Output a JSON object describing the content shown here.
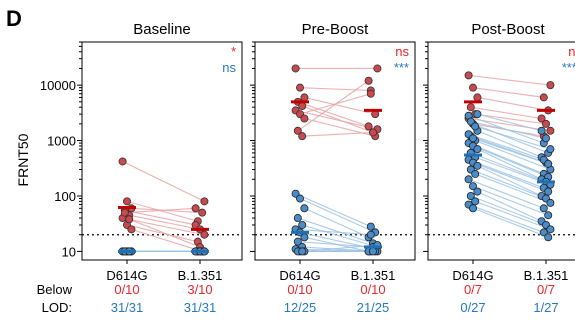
{
  "chart_data": {
    "type": "scatter",
    "figure_label": "D",
    "ylabel": "FRNT50",
    "yscale": "log",
    "ylim": [
      7,
      60000
    ],
    "yticks": [
      10,
      100,
      1000,
      10000
    ],
    "ytick_labels": [
      "10",
      "100",
      "1000",
      "10000"
    ],
    "lod": 20,
    "categories": [
      "D614G",
      "B.1.351"
    ],
    "colors": {
      "red_fill": "#c8494e",
      "red_line": "#e8a3a5",
      "red_median": "#c00000",
      "blue_fill": "#4a8cc7",
      "blue_line": "#9cc3e4",
      "blue_median": "#1f6fb4",
      "label_red": "#e8262b",
      "label_blue": "#2878c0"
    },
    "below_lod_label": [
      "Below",
      "LOD:"
    ],
    "panels": [
      {
        "title": "Baseline",
        "sig_red": "*",
        "sig_blue": "ns",
        "red_medians": [
          62,
          25
        ],
        "blue_medians": [
          10,
          10
        ],
        "red_pairs": [
          [
            420,
            80
          ],
          [
            80,
            35
          ],
          [
            60,
            50
          ],
          [
            55,
            30
          ],
          [
            45,
            25
          ],
          [
            40,
            20
          ],
          [
            30,
            15
          ],
          [
            25,
            10
          ],
          [
            50,
            60
          ],
          [
            38,
            12
          ]
        ],
        "blue_pairs": [
          [
            10,
            10
          ],
          [
            10,
            10
          ],
          [
            10,
            10
          ],
          [
            10,
            10
          ],
          [
            10,
            10
          ],
          [
            10,
            10
          ],
          [
            10,
            10
          ],
          [
            10,
            10
          ],
          [
            10,
            10
          ],
          [
            10,
            10
          ]
        ],
        "below_red": [
          "0/10",
          "3/10"
        ],
        "below_blue": [
          "31/31",
          "31/31"
        ]
      },
      {
        "title": "Pre-Boost",
        "sig_red": "ns",
        "sig_blue": "***",
        "red_medians": [
          5000,
          3500
        ],
        "blue_medians": [
          22,
          12
        ],
        "red_pairs": [
          [
            20000,
            20000
          ],
          [
            9000,
            8000
          ],
          [
            6000,
            3000
          ],
          [
            5000,
            1800
          ],
          [
            4200,
            1400
          ],
          [
            3500,
            1600
          ],
          [
            3000,
            7000
          ],
          [
            2500,
            1200
          ],
          [
            1500,
            12000
          ],
          [
            1200,
            1400
          ]
        ],
        "blue_pairs": [
          [
            110,
            28
          ],
          [
            90,
            22
          ],
          [
            60,
            18
          ],
          [
            40,
            14
          ],
          [
            30,
            12
          ],
          [
            25,
            20
          ],
          [
            22,
            11
          ],
          [
            18,
            10
          ],
          [
            15,
            12
          ],
          [
            12,
            10
          ],
          [
            11,
            10
          ],
          [
            10,
            10
          ],
          [
            10,
            10
          ],
          [
            10,
            10
          ],
          [
            10,
            13
          ]
        ],
        "below_red": [
          "0/10",
          "0/10"
        ],
        "below_blue": [
          "12/25",
          "21/25"
        ]
      },
      {
        "title": "Post-Boost",
        "sig_red": "ns",
        "sig_blue": "****",
        "red_medians": [
          5000,
          3500
        ],
        "blue_medians": [
          550,
          180
        ],
        "red_pairs": [
          [
            15000,
            10000
          ],
          [
            9000,
            6000
          ],
          [
            6000,
            3500
          ],
          [
            4000,
            2500
          ],
          [
            3000,
            2000
          ],
          [
            2500,
            1500
          ],
          [
            2000,
            1200
          ]
        ],
        "blue_pairs": [
          [
            2800,
            900
          ],
          [
            2000,
            600
          ],
          [
            1500,
            500
          ],
          [
            1200,
            400
          ],
          [
            1000,
            300
          ],
          [
            900,
            250
          ],
          [
            800,
            220
          ],
          [
            700,
            200
          ],
          [
            600,
            180
          ],
          [
            500,
            160
          ],
          [
            450,
            140
          ],
          [
            400,
            120
          ],
          [
            350,
            100
          ],
          [
            300,
            90
          ],
          [
            250,
            75
          ],
          [
            200,
            60
          ],
          [
            150,
            45
          ],
          [
            120,
            35
          ],
          [
            100,
            30
          ],
          [
            80,
            25
          ],
          [
            70,
            22
          ],
          [
            60,
            18
          ],
          [
            3000,
            1500
          ],
          [
            2200,
            1100
          ],
          [
            1800,
            700
          ],
          [
            1300,
            450
          ],
          [
            1100,
            380
          ]
        ],
        "below_red": [
          "0/7",
          "0/7"
        ],
        "below_blue": [
          "0/27",
          "1/27"
        ]
      }
    ]
  }
}
